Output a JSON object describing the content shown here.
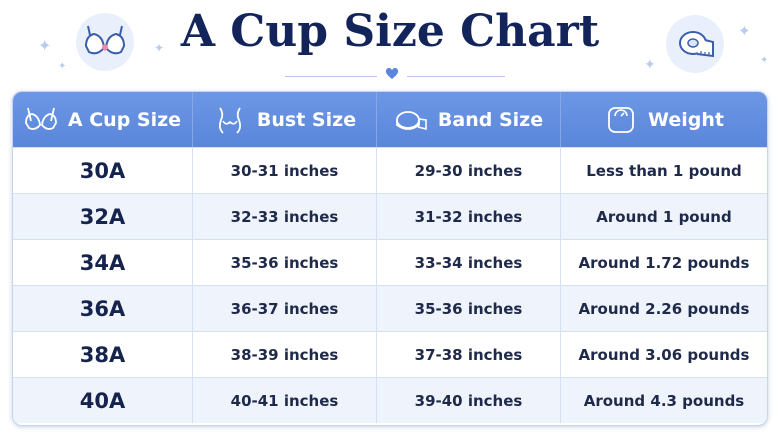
{
  "title": "A Cup Size Chart",
  "colors": {
    "header": "#5a86db",
    "title": "#13245a",
    "row_alt": "#eef3fc",
    "accent_icon": "#5a86db",
    "heart": "#5a86db",
    "bra_heart": "#f08aa8"
  },
  "icons": {
    "left_badge": "bra-icon",
    "right_badge": "measuring-tape-icon",
    "divider_ornament": "heart-icon"
  },
  "columns": [
    {
      "label": "A Cup Size",
      "icon": "bra-icon"
    },
    {
      "label": "Bust Size",
      "icon": "torso-icon"
    },
    {
      "label": "Band Size",
      "icon": "measuring-tape-icon"
    },
    {
      "label": "Weight",
      "icon": "scale-icon"
    }
  ],
  "rows": [
    {
      "cup": "30A",
      "bust": "30-31 inches",
      "band": "29-30 inches",
      "weight": "Less than 1 pound"
    },
    {
      "cup": "32A",
      "bust": "32-33 inches",
      "band": "31-32 inches",
      "weight": "Around 1 pound"
    },
    {
      "cup": "34A",
      "bust": "35-36 inches",
      "band": "33-34 inches",
      "weight": "Around 1.72 pounds"
    },
    {
      "cup": "36A",
      "bust": "36-37 inches",
      "band": "35-36 inches",
      "weight": "Around 2.26 pounds"
    },
    {
      "cup": "38A",
      "bust": "38-39 inches",
      "band": "37-38 inches",
      "weight": "Around 3.06 pounds"
    },
    {
      "cup": "40A",
      "bust": "40-41 inches",
      "band": "39-40 inches",
      "weight": "Around 4.3 pounds"
    }
  ]
}
